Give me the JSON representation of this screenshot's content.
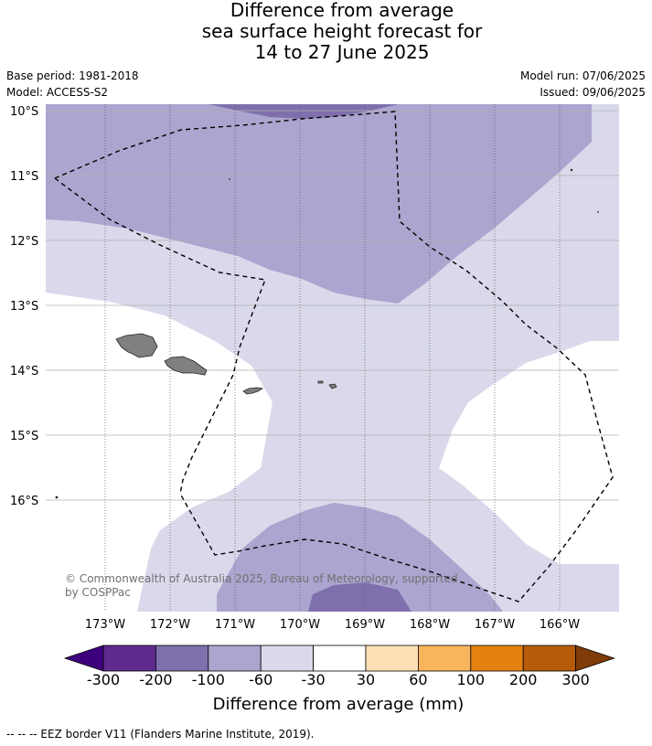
{
  "title": {
    "line1": "Difference from average",
    "line2": "sea surface height forecast for",
    "line3": "14 to 27 June 2025"
  },
  "meta": {
    "base_period": "Base period: 1981-2018",
    "model": "Model: ACCESS-S2",
    "model_run": "Model run: 07/06/2025",
    "issued": "Issued: 09/06/2025"
  },
  "map": {
    "lat_labels": [
      "10°S",
      "11°S",
      "12°S",
      "13°S",
      "14°S",
      "15°S",
      "16°S"
    ],
    "lon_labels": [
      "173°W",
      "172°W",
      "171°W",
      "170°W",
      "169°W",
      "168°W",
      "167°W",
      "166°W"
    ],
    "credit_line1": "© Commonwealth of Australia 2025, Bureau of Meteorology, supported",
    "credit_line2": "by COSPPac"
  },
  "colorbar": {
    "label": "Difference from average (mm)",
    "ticks": [
      "-300",
      "-200",
      "-100",
      "-60",
      "-30",
      "30",
      "60",
      "100",
      "200",
      "300"
    ],
    "colors": [
      "#3f007d",
      "#5e2a8e",
      "#7f70ad",
      "#aba5cf",
      "#d9d9eb",
      "#ffffff",
      "#fde0b6",
      "#f8b55c",
      "#e3820f",
      "#b65b07",
      "#7f3b08"
    ]
  },
  "footer": "--  --  -- EEZ border V11 (Flanders Marine Institute, 2019)."
}
